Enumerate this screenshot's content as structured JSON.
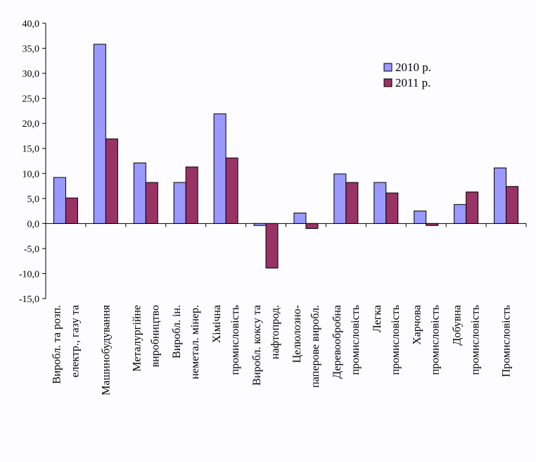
{
  "chart_data": {
    "type": "bar",
    "title": "",
    "xlabel": "",
    "ylabel": "",
    "ylim": [
      -15,
      40
    ],
    "y_ticks": [
      "40,0",
      "35,0",
      "30,0",
      "25,0",
      "20,0",
      "15,0",
      "10,0",
      "5,0",
      "0,0",
      "-5,0",
      "-10,0",
      "-15,0"
    ],
    "y_tick_values": [
      40,
      35,
      30,
      25,
      20,
      15,
      10,
      5,
      0,
      -5,
      -10,
      -15
    ],
    "grid": false,
    "legend_position": "top-right",
    "categories": [
      [
        "Виробл. та розп.",
        "електр., газу та"
      ],
      [
        "Машинобудування"
      ],
      [
        "Металургійне",
        "виробництво"
      ],
      [
        "Виробл. ін.",
        "неметал. мінер."
      ],
      [
        "Хімічна",
        "промисловість"
      ],
      [
        "Виробл. коксу та",
        "нафтопрод."
      ],
      [
        "Целюлозно-",
        "паперове виробл."
      ],
      [
        "Деревообробна",
        "промисловість"
      ],
      [
        "Легка",
        "промисловість"
      ],
      [
        "Харчова",
        "промисловість"
      ],
      [
        "Добувна",
        "промисловість"
      ],
      [
        "Промисловість"
      ]
    ],
    "series": [
      {
        "name": "2010 р.",
        "color": "#9999ff",
        "values": [
          9.2,
          35.8,
          12.1,
          8.2,
          21.9,
          -0.4,
          2.1,
          9.9,
          8.2,
          2.5,
          3.8,
          11.1
        ]
      },
      {
        "name": "2011 р.",
        "color": "#993366",
        "values": [
          5.1,
          16.9,
          8.2,
          11.3,
          13.1,
          -8.9,
          -1.0,
          8.2,
          6.1,
          -0.4,
          6.3,
          7.4
        ]
      }
    ]
  }
}
